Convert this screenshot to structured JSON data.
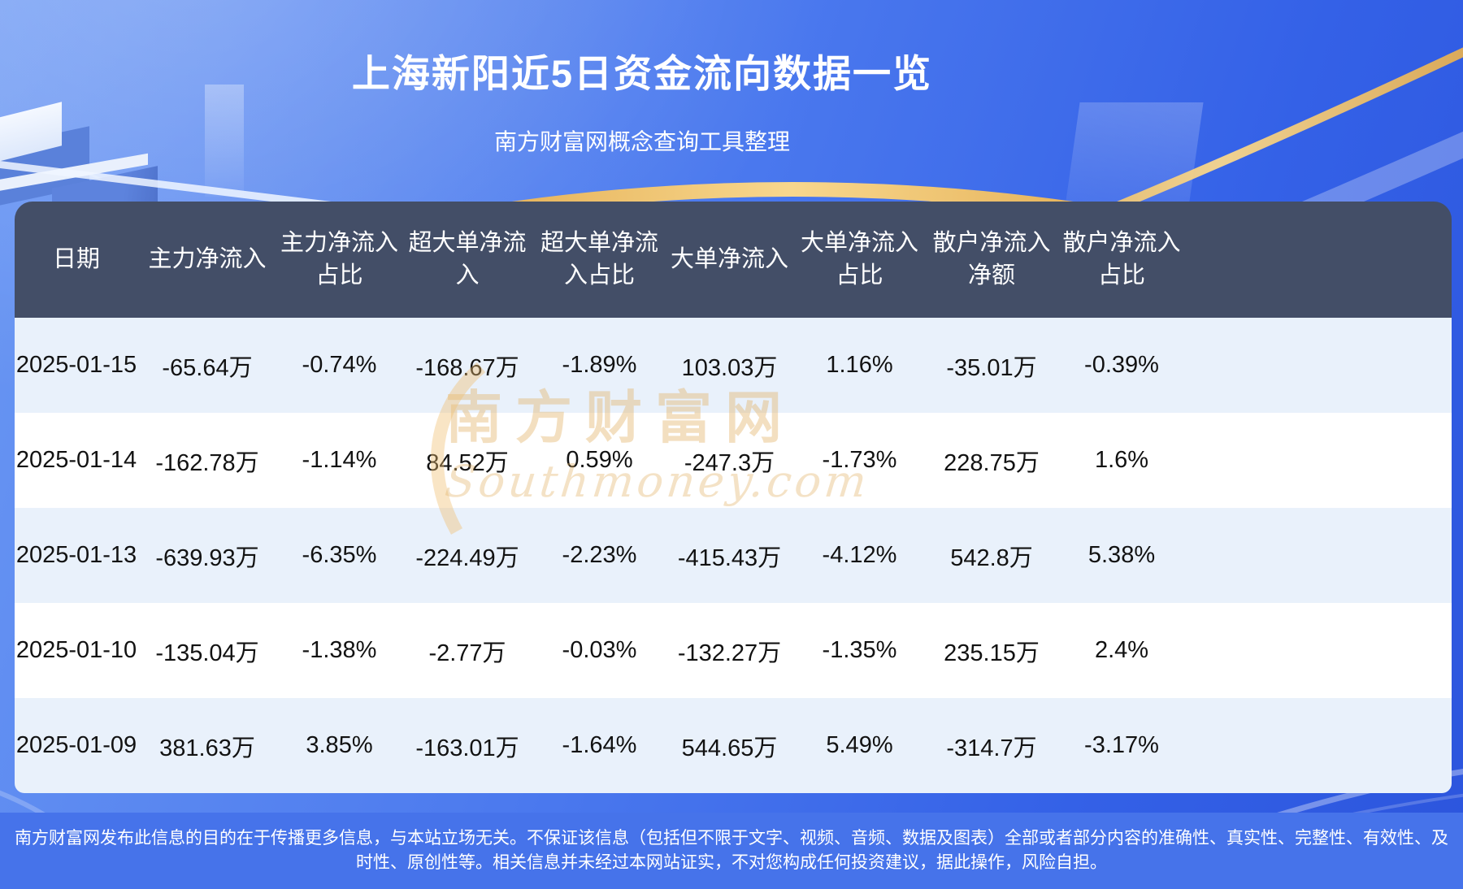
{
  "title": "上海新阳近5日资金流向数据一览",
  "subtitle": "南方财富网概念查询工具整理",
  "chart_data": {
    "type": "table",
    "title": "上海新阳近5日资金流向数据一览",
    "subtitle": "南方财富网概念查询工具整理",
    "columns": [
      "日期",
      "主力净流入",
      "主力净流入占比",
      "超大单净流入",
      "超大单净流入占比",
      "大单净流入",
      "大单净流入占比",
      "散户净流入净额",
      "散户净流入占比"
    ],
    "rows": [
      [
        "2025-01-15",
        "-65.64万",
        "-0.74%",
        "-168.67万",
        "-1.89%",
        "103.03万",
        "1.16%",
        "-35.01万",
        "-0.39%"
      ],
      [
        "2025-01-14",
        "-162.78万",
        "-1.14%",
        "84.52万",
        "0.59%",
        "-247.3万",
        "-1.73%",
        "228.75万",
        "1.6%"
      ],
      [
        "2025-01-13",
        "-639.93万",
        "-6.35%",
        "-224.49万",
        "-2.23%",
        "-415.43万",
        "-4.12%",
        "542.8万",
        "5.38%"
      ],
      [
        "2025-01-10",
        "-135.04万",
        "-1.38%",
        "-2.77万",
        "-0.03%",
        "-132.27万",
        "-1.35%",
        "235.15万",
        "2.4%"
      ],
      [
        "2025-01-09",
        "381.63万",
        "3.85%",
        "-163.01万",
        "-1.64%",
        "544.65万",
        "5.49%",
        "-314.7万",
        "-3.17%"
      ]
    ],
    "units": "万 (ten-thousand CNY)",
    "legend_position": "none",
    "grid": false
  },
  "watermark": {
    "text_cn": "南方财富网",
    "text_en": "Southmoney.com"
  },
  "footer": {
    "disclaimer": "南方财富网发布此信息的目的在于传播更多信息，与本站立场无关。不保证该信息（包括但不限于文字、视频、音频、数据及图表）全部或者部分内容的准确性、真实性、完整性、有效性、及时性、原创性等。相关信息并未经过本网站证实，不对您构成任何投资建议，据此操作，风险自担。"
  },
  "colors": {
    "background_top": "#6a97f3",
    "background_bottom": "#2c55dd",
    "table_header_bg": "#434e67",
    "row_alt_bg": "#e9f1fb",
    "row_bg": "#ffffff",
    "body_text": "#121212",
    "title_text": "#ffffff",
    "accent_gold": "#f2c168",
    "footer_bg": "#4673ea",
    "watermark": "#e3b26a"
  }
}
